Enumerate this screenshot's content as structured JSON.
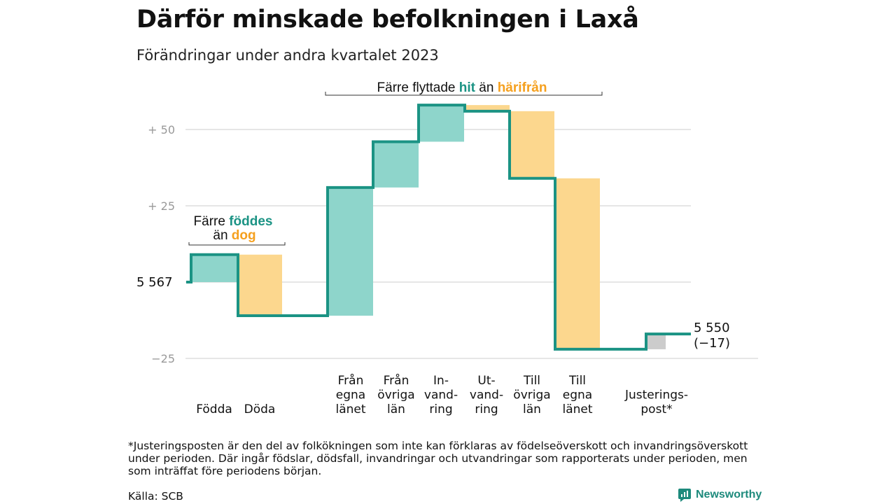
{
  "title": "Därför minskade befolkningen i Laxå",
  "subtitle": "Förändringar under andra kvartalet 2023",
  "footnote": "*Justeringsposten är den del av folkökningen som inte kan förklaras av födelseöverskott och invandringsöverskott under perioden. Där ingår födslar, dödsfall, invandringar och utvandringar som rapporterats under perioden, men som inträffat före periodens början.",
  "source": "Källa: SCB",
  "brand": "Newsworthy",
  "colors": {
    "line": "#1b9384",
    "in": "#8ed5cb",
    "out": "#fcd78e",
    "adjust": "#cccccc",
    "grid": "#dddddd",
    "teal_text": "#1b9384",
    "orange_text": "#f5a01e"
  },
  "chart_data": {
    "type": "waterfall",
    "start_value": 5567,
    "start_label": "5  567",
    "end_value": 5550,
    "end_label": "5 550",
    "end_change_label": "(−17)",
    "ylim": [
      -27,
      63
    ],
    "yticks": [
      {
        "value": 50,
        "label": "+  50"
      },
      {
        "value": 25,
        "label": "+  25"
      },
      {
        "value": 0,
        "label": ""
      },
      {
        "value": -25,
        "label": "−25"
      }
    ],
    "categories": [
      {
        "label": [
          "Födda"
        ],
        "change": 9,
        "kind": "in"
      },
      {
        "label": [
          "Döda"
        ],
        "change": -20,
        "kind": "out"
      },
      {
        "label": [
          "Från",
          "egna",
          "länet"
        ],
        "change": 42,
        "kind": "in"
      },
      {
        "label": [
          "Från",
          "övriga",
          "län"
        ],
        "change": 15,
        "kind": "in"
      },
      {
        "label": [
          "In-",
          "vand-",
          "ring"
        ],
        "change": 12,
        "kind": "in"
      },
      {
        "label": [
          "Ut-",
          "vand-",
          "ring"
        ],
        "change": -2,
        "kind": "out"
      },
      {
        "label": [
          "Till",
          "övriga",
          "län"
        ],
        "change": -22,
        "kind": "out"
      },
      {
        "label": [
          "Till",
          "egna",
          "länet"
        ],
        "change": -56,
        "kind": "out"
      },
      {
        "label": [
          "Justerings-",
          "post*"
        ],
        "change": 5,
        "kind": "adjust"
      }
    ],
    "annotations": [
      {
        "prefix": "Färre ",
        "in_word": "föddes",
        "line2_prefix": "än ",
        "out_word": "dog"
      },
      {
        "prefix": "Färre flyttade ",
        "in_word": "hit",
        "middle": " än ",
        "out_word": "härifrån"
      }
    ]
  }
}
